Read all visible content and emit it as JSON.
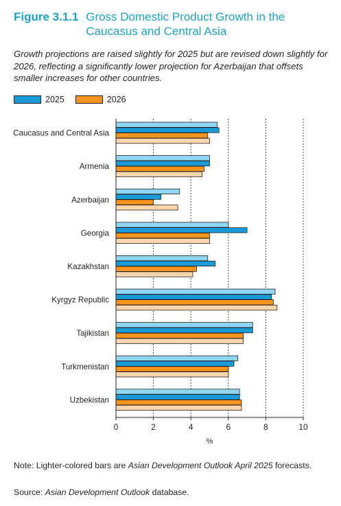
{
  "figure": {
    "number": "Figure 3.1.1",
    "title": "Gross Domestic Product Growth in the Caucasus and Central Asia",
    "subtitle": "Growth projections are raised slightly for 2025 but are revised down slightly for 2026, reflecting a significantly lower projection for Azerbaijan that offsets smaller increases for other countries."
  },
  "colors": {
    "s2025": "#1a9ad6",
    "s2025_light": "#8fd6f3",
    "s2026": "#f7941d",
    "s2026_light": "#fdd6ad",
    "grid": "#231f20"
  },
  "chart_data": {
    "type": "bar",
    "orientation": "horizontal",
    "categories": [
      "Caucasus and Central Asia",
      "Armenia",
      "Azerbaijan",
      "Georgia",
      "Kazakhstan",
      "Kyrgyz Republic",
      "Tajikistan",
      "Turkmenistan",
      "Uzbekistan"
    ],
    "series": [
      {
        "name": "2025",
        "values": [
          5.5,
          5.0,
          2.4,
          7.0,
          5.3,
          8.3,
          7.3,
          6.3,
          6.6
        ]
      },
      {
        "name": "2026",
        "values": [
          4.9,
          4.7,
          2.0,
          5.0,
          4.3,
          8.4,
          6.8,
          6.0,
          6.7
        ]
      }
    ],
    "previous_forecast_2025": [
      5.4,
      5.0,
      3.4,
      6.0,
      4.9,
      8.5,
      7.3,
      6.5,
      6.6
    ],
    "previous_forecast_2026": [
      5.0,
      4.6,
      3.3,
      5.0,
      4.1,
      8.6,
      6.8,
      6.0,
      6.7
    ],
    "xlabel": "%",
    "xlim": [
      0,
      10
    ],
    "xticks": [
      "0",
      "2",
      "4",
      "6",
      "8",
      "10"
    ],
    "legend": "top-left",
    "grid": "vertical-dashed"
  },
  "note_prefix": "Note: Lighter-colored bars are ",
  "note_italic": "Asian Development Outlook April 2025",
  "note_suffix": " forecasts.",
  "source_prefix": "Source: ",
  "source_italic": "Asian Development Outlook",
  "source_suffix": " database."
}
